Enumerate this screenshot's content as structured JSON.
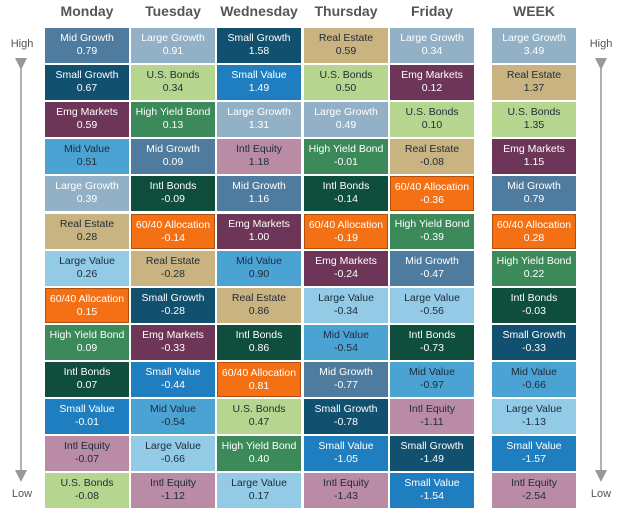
{
  "side_labels": {
    "high": "High",
    "low": "Low"
  },
  "colors": {
    "Large Growth": {
      "bg": "#92b1c6",
      "fg": "#ffffff"
    },
    "Mid Growth": {
      "bg": "#4f7c9e",
      "fg": "#ffffff"
    },
    "Small Growth": {
      "bg": "#11506e",
      "fg": "#ffffff"
    },
    "Large Value": {
      "bg": "#93cbe6",
      "fg": "#1d2b3a"
    },
    "Mid Value": {
      "bg": "#4ba3d3",
      "fg": "#1d2b3a"
    },
    "Small Value": {
      "bg": "#1f7ebf",
      "fg": "#ffffff"
    },
    "Real Estate": {
      "bg": "#c9b381",
      "fg": "#1d2b3a"
    },
    "U.S. Bonds": {
      "bg": "#b6d68f",
      "fg": "#1d2b3a"
    },
    "High Yield Bond": {
      "bg": "#3c895a",
      "fg": "#ffffff"
    },
    "Intl Bonds": {
      "bg": "#0f4d3c",
      "fg": "#ffffff"
    },
    "Emg Markets": {
      "bg": "#6d3557",
      "fg": "#ffffff"
    },
    "Intl Equity": {
      "bg": "#b98ba4",
      "fg": "#1d2b3a"
    },
    "60/40 Allocation": {
      "bg": "#f47014",
      "fg": "#ffffff"
    }
  },
  "columns": [
    {
      "header": "Monday",
      "cells": [
        {
          "name": "Mid Growth",
          "value": "0.79"
        },
        {
          "name": "Small Growth",
          "value": "0.67"
        },
        {
          "name": "Emg Markets",
          "value": "0.59"
        },
        {
          "name": "Mid Value",
          "value": "0.51"
        },
        {
          "name": "Large Growth",
          "value": "0.39"
        },
        {
          "name": "Real Estate",
          "value": "0.28"
        },
        {
          "name": "Large Value",
          "value": "0.26"
        },
        {
          "name": "60/40 Allocation",
          "value": "0.15"
        },
        {
          "name": "High Yield Bond",
          "value": "0.09"
        },
        {
          "name": "Intl Bonds",
          "value": "0.07"
        },
        {
          "name": "Small Value",
          "value": "-0.01"
        },
        {
          "name": "Intl Equity",
          "value": "-0.07"
        },
        {
          "name": "U.S. Bonds",
          "value": "-0.08"
        }
      ]
    },
    {
      "header": "Tuesday",
      "cells": [
        {
          "name": "Large Growth",
          "value": "0.91"
        },
        {
          "name": "U.S. Bonds",
          "value": "0.34"
        },
        {
          "name": "High Yield Bond",
          "value": "0.13"
        },
        {
          "name": "Mid Growth",
          "value": "0.09"
        },
        {
          "name": "Intl Bonds",
          "value": "-0.09"
        },
        {
          "name": "60/40 Allocation",
          "value": "-0.14"
        },
        {
          "name": "Real Estate",
          "value": "-0.28"
        },
        {
          "name": "Small Growth",
          "value": "-0.28"
        },
        {
          "name": "Emg Markets",
          "value": "-0.33"
        },
        {
          "name": "Small Value",
          "value": "-0.44"
        },
        {
          "name": "Mid Value",
          "value": "-0.54"
        },
        {
          "name": "Large Value",
          "value": "-0.66"
        },
        {
          "name": "Intl Equity",
          "value": "-1.12"
        }
      ]
    },
    {
      "header": "Wednesday",
      "cells": [
        {
          "name": "Small Growth",
          "value": "1.58"
        },
        {
          "name": "Small Value",
          "value": "1.49"
        },
        {
          "name": "Large Growth",
          "value": "1.31"
        },
        {
          "name": "Intl Equity",
          "value": "1.18"
        },
        {
          "name": "Mid Growth",
          "value": "1.16"
        },
        {
          "name": "Emg Markets",
          "value": "1.00"
        },
        {
          "name": "Mid Value",
          "value": "0.90"
        },
        {
          "name": "Real Estate",
          "value": "0.86"
        },
        {
          "name": "Intl Bonds",
          "value": "0.86"
        },
        {
          "name": "60/40 Allocation",
          "value": "0.81"
        },
        {
          "name": "U.S. Bonds",
          "value": "0.47"
        },
        {
          "name": "High Yield Bond",
          "value": "0.40"
        },
        {
          "name": "Large Value",
          "value": "0.17"
        }
      ]
    },
    {
      "header": "Thursday",
      "cells": [
        {
          "name": "Real Estate",
          "value": "0.59"
        },
        {
          "name": "U.S. Bonds",
          "value": "0.50"
        },
        {
          "name": "Large Growth",
          "value": "0.49"
        },
        {
          "name": "High Yield Bond",
          "value": "-0.01"
        },
        {
          "name": "Intl Bonds",
          "value": "-0.14"
        },
        {
          "name": "60/40 Allocation",
          "value": "-0.19"
        },
        {
          "name": "Emg Markets",
          "value": "-0.24"
        },
        {
          "name": "Large Value",
          "value": "-0.34"
        },
        {
          "name": "Mid Value",
          "value": "-0.54"
        },
        {
          "name": "Mid Growth",
          "value": "-0.77"
        },
        {
          "name": "Small Growth",
          "value": "-0.78"
        },
        {
          "name": "Small Value",
          "value": "-1.05"
        },
        {
          "name": "Intl Equity",
          "value": "-1.43"
        }
      ]
    },
    {
      "header": "Friday",
      "cells": [
        {
          "name": "Large Growth",
          "value": "0.34"
        },
        {
          "name": "Emg Markets",
          "value": "0.12"
        },
        {
          "name": "U.S. Bonds",
          "value": "0.10"
        },
        {
          "name": "Real Estate",
          "value": "-0.08"
        },
        {
          "name": "60/40 Allocation",
          "value": "-0.36"
        },
        {
          "name": "High Yield Bond",
          "value": "-0.39"
        },
        {
          "name": "Mid Growth",
          "value": "-0.47"
        },
        {
          "name": "Large Value",
          "value": "-0.56"
        },
        {
          "name": "Intl Bonds",
          "value": "-0.73"
        },
        {
          "name": "Mid Value",
          "value": "-0.97"
        },
        {
          "name": "Intl Equity",
          "value": "-1.11"
        },
        {
          "name": "Small Growth",
          "value": "-1.49"
        },
        {
          "name": "Small Value",
          "value": "-1.54"
        }
      ]
    },
    {
      "header": "WEEK",
      "cells": [
        {
          "name": "Large Growth",
          "value": "3.49"
        },
        {
          "name": "Real Estate",
          "value": "1.37"
        },
        {
          "name": "U.S. Bonds",
          "value": "1.35"
        },
        {
          "name": "Emg Markets",
          "value": "1.15"
        },
        {
          "name": "Mid Growth",
          "value": "0.79"
        },
        {
          "name": "60/40 Allocation",
          "value": "0.28"
        },
        {
          "name": "High Yield Bond",
          "value": "0.22"
        },
        {
          "name": "Intl Bonds",
          "value": "-0.03"
        },
        {
          "name": "Small Growth",
          "value": "-0.33"
        },
        {
          "name": "Mid Value",
          "value": "-0.66"
        },
        {
          "name": "Large Value",
          "value": "-1.13"
        },
        {
          "name": "Small Value",
          "value": "-1.57"
        },
        {
          "name": "Intl Equity",
          "value": "-2.54"
        }
      ]
    }
  ]
}
